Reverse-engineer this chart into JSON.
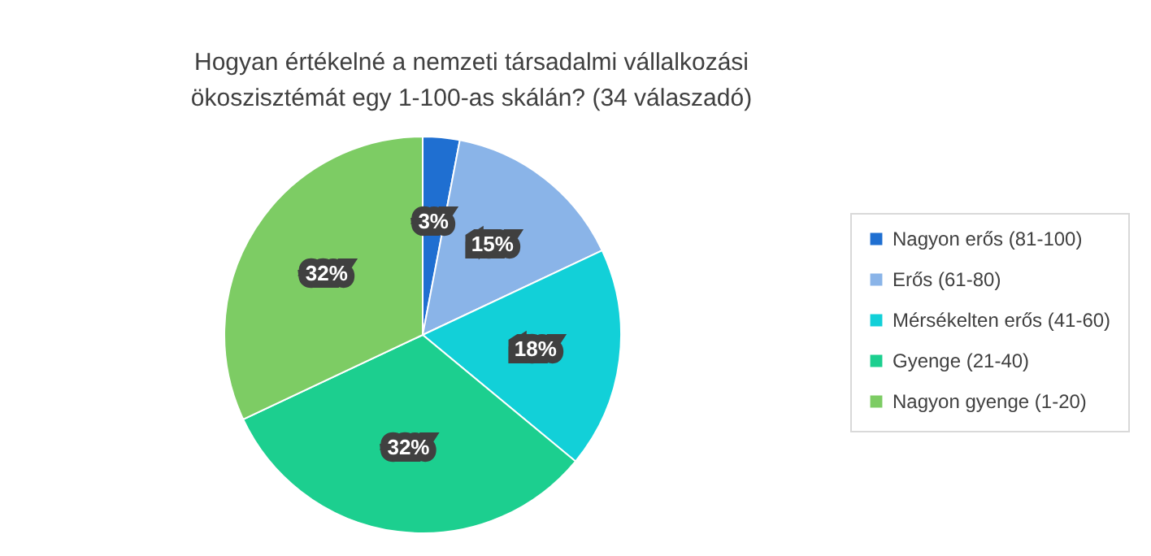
{
  "chart_data": {
    "type": "pie",
    "title": "Hogyan értékelné a nemzeti társadalmi vállalkozási ökoszisztémát egy 1-100-as skálán? (34 válaszadó)",
    "categories": [
      "Nagyon erős (81-100)",
      "Erős (61-80)",
      "Mérsékelten erős (41-60)",
      "Gyenge (21-40)",
      "Nagyon gyenge (1-20)"
    ],
    "values": [
      3,
      15,
      18,
      32,
      32
    ],
    "colors": [
      "#1f6fd1",
      "#8ab4e8",
      "#12d0d8",
      "#1ccf8f",
      "#7dcc64"
    ],
    "value_labels": [
      "3%",
      "15%",
      "18%",
      "32%",
      "32%"
    ],
    "legend": "right"
  }
}
